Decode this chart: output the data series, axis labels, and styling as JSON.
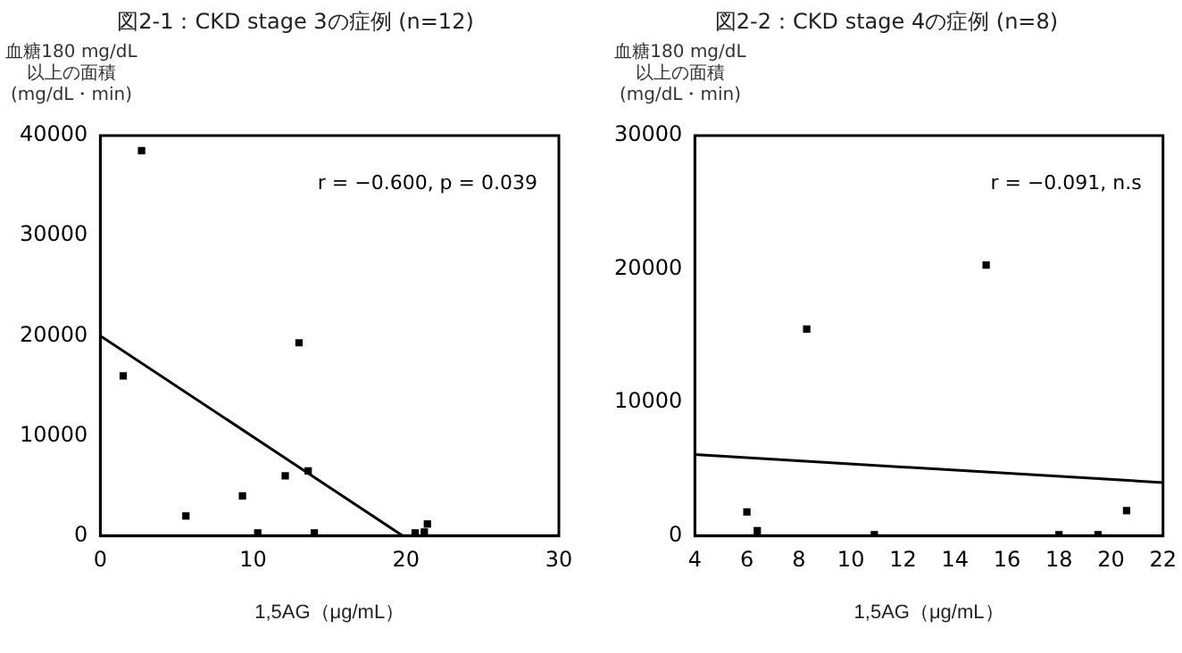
{
  "chart_data": [
    {
      "type": "scatter",
      "title": "図2-1：CKD stage 3の症例 (n=12)",
      "xlabel": "1,5AG（μg/mL）",
      "ylabel": "血糖180 mg/dL\n以上の面積\n(mg/dL・min)",
      "xlim": [
        0,
        30
      ],
      "xticks": [
        0,
        10,
        20,
        30
      ],
      "ylim": [
        0,
        40000
      ],
      "yticks": [
        0,
        10000,
        20000,
        30000,
        40000
      ],
      "grid": false,
      "legend": false,
      "annotations": [
        "r = −0.600, p = 0.039"
      ],
      "series": [
        {
          "type": "scatter",
          "marker": "square",
          "color": "#000000",
          "x": [
            1.5,
            2.7,
            5.6,
            9.3,
            10.3,
            12.1,
            13,
            13.6,
            14,
            20.6,
            21.2,
            21.4
          ],
          "values": [
            16000,
            38500,
            2000,
            4000,
            300,
            6000,
            19300,
            6500,
            300,
            300,
            400,
            1200
          ]
        },
        {
          "type": "line",
          "color": "#000000",
          "x": [
            0,
            19.8
          ],
          "values": [
            20000,
            0
          ]
        }
      ]
    },
    {
      "type": "scatter",
      "title": "図2-2：CKD stage 4の症例 (n=8)",
      "xlabel": "1,5AG（μg/mL）",
      "ylabel": "血糖180 mg/dL\n以上の面積\n(mg/dL・min)",
      "xlim": [
        4,
        22
      ],
      "xticks": [
        4,
        6,
        8,
        10,
        12,
        14,
        16,
        18,
        20,
        22
      ],
      "ylim": [
        0,
        30000
      ],
      "yticks": [
        0,
        10000,
        20000,
        30000
      ],
      "grid": false,
      "legend": false,
      "annotations": [
        "r = −0.091, n.s"
      ],
      "series": [
        {
          "type": "scatter",
          "marker": "square",
          "color": "#000000",
          "x": [
            6,
            6.4,
            8.3,
            10.9,
            15.2,
            18,
            19.5,
            20.6
          ],
          "values": [
            1800,
            400,
            15500,
            100,
            20300,
            100,
            100,
            1900
          ]
        },
        {
          "type": "line",
          "color": "#000000",
          "x": [
            4,
            22
          ],
          "values": [
            6100,
            4000
          ]
        }
      ]
    }
  ]
}
